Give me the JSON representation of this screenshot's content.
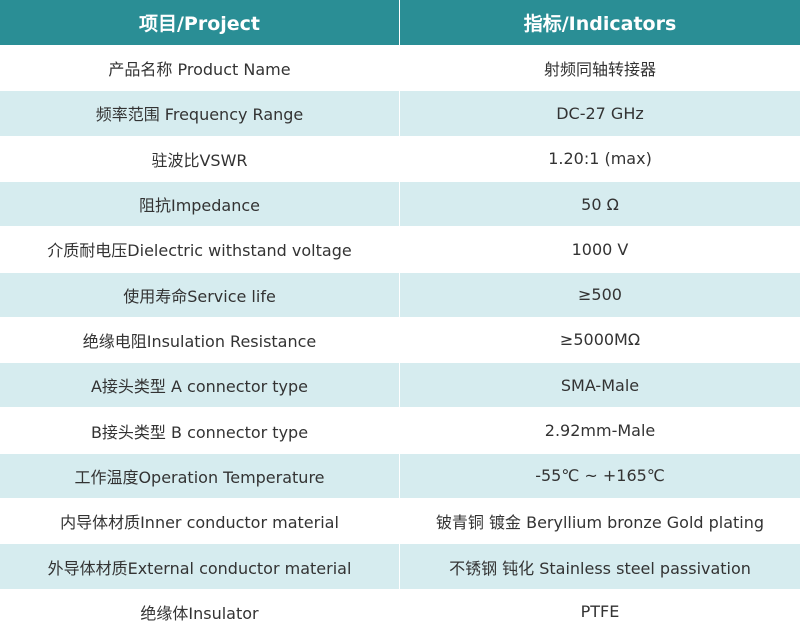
{
  "table": {
    "header": [
      "项目/Project",
      "指标/Indicators"
    ],
    "rows": [
      [
        "产品名称 Product Name",
        "射频同轴转接器"
      ],
      [
        "频率范围 Frequency Range",
        "DC-27 GHz"
      ],
      [
        "驻波比VSWR",
        "1.20:1 (max)"
      ],
      [
        "阻抗Impedance",
        "50 Ω"
      ],
      [
        "介质耐电压Dielectric withstand voltage",
        "1000 V"
      ],
      [
        "使用寿命Service life",
        "≥500"
      ],
      [
        "绝缘电阻Insulation Resistance",
        "≥5000MΩ"
      ],
      [
        "A接头类型 A connector type",
        "SMA-Male"
      ],
      [
        "B接头类型 B connector type",
        "2.92mm-Male"
      ],
      [
        "工作温度Operation Temperature",
        "-55℃ ~ +165℃"
      ],
      [
        "内导体材质Inner conductor material",
        "铍青铜 镀金 Beryllium bronze Gold plating"
      ],
      [
        "外导体材质External conductor material",
        "不锈钢 钝化 Stainless steel passivation"
      ],
      [
        "绝缘体Insulator",
        "PTFE"
      ]
    ]
  }
}
